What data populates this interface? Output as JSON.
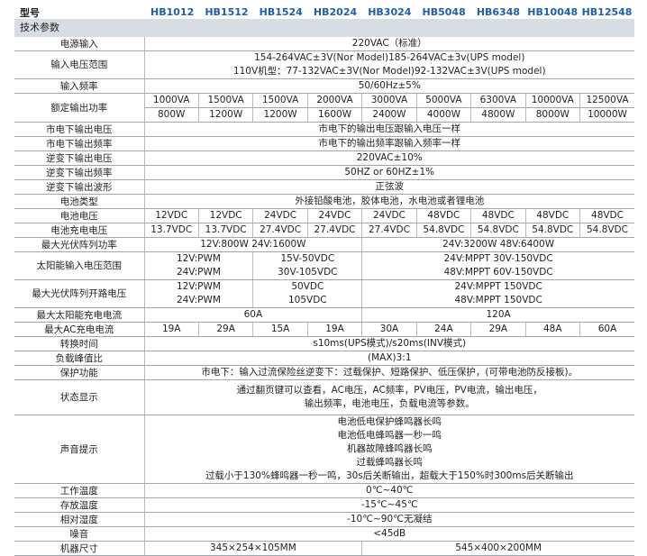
{
  "header": {
    "label": "型号",
    "models": [
      "HB1012",
      "HB1512",
      "HB1524",
      "HB2024",
      "HB3024",
      "HB5048",
      "HB6348",
      "HB10048",
      "HB12548"
    ]
  },
  "section": "技术参数",
  "colors": {
    "model_text": "#1f5fa8",
    "section_band": "#d7dde3"
  },
  "rows": [
    {
      "label": "电源输入",
      "h": 15,
      "cells": [
        {
          "span": 9,
          "lines": [
            "220VAC（标准）"
          ]
        }
      ]
    },
    {
      "label": "输入电压范围",
      "h": 31,
      "cells": [
        {
          "span": 9,
          "lines": [
            "154-264VAC±3V(Nor Model)185-264VAC±3v(UPS model)",
            "110V机型：77-132VAC±3V(Nor Model)92-132VAC±3V(UPS model)"
          ]
        }
      ]
    },
    {
      "label": "输入频率",
      "h": 15,
      "cells": [
        {
          "span": 9,
          "lines": [
            "50/60Hz±5%"
          ]
        }
      ]
    },
    {
      "label": "额定输出功率",
      "h": 15,
      "rowspan": 2,
      "cells": [
        {
          "span": 1,
          "lines": [
            "1000VA"
          ]
        },
        {
          "span": 1,
          "lines": [
            "1500VA"
          ]
        },
        {
          "span": 1,
          "lines": [
            "1500VA"
          ]
        },
        {
          "span": 1,
          "lines": [
            "2000VA"
          ]
        },
        {
          "span": 1,
          "lines": [
            "3000VA"
          ]
        },
        {
          "span": 1,
          "lines": [
            "5000VA"
          ]
        },
        {
          "span": 1,
          "lines": [
            "6300VA"
          ]
        },
        {
          "span": 1,
          "lines": [
            "10000VA"
          ]
        },
        {
          "span": 1,
          "lines": [
            "12500VA"
          ]
        }
      ]
    },
    {
      "label": "",
      "h": 15,
      "cont": true,
      "cells": [
        {
          "span": 1,
          "lines": [
            "800W"
          ]
        },
        {
          "span": 1,
          "lines": [
            "1200W"
          ]
        },
        {
          "span": 1,
          "lines": [
            "1200W"
          ]
        },
        {
          "span": 1,
          "lines": [
            "1600W"
          ]
        },
        {
          "span": 1,
          "lines": [
            "2400W"
          ]
        },
        {
          "span": 1,
          "lines": [
            "4000W"
          ]
        },
        {
          "span": 1,
          "lines": [
            "4800W"
          ]
        },
        {
          "span": 1,
          "lines": [
            "8000W"
          ]
        },
        {
          "span": 1,
          "lines": [
            "10000W"
          ]
        }
      ]
    },
    {
      "label": "市电下输出电压",
      "h": 15,
      "cells": [
        {
          "span": 9,
          "lines": [
            "市电下的输出电压跟输入电压一样"
          ]
        }
      ]
    },
    {
      "label": "市电下输出频率",
      "h": 15,
      "cells": [
        {
          "span": 9,
          "lines": [
            "市电下的输出频率跟输入频率一样"
          ]
        }
      ]
    },
    {
      "label": "逆变下输出电压",
      "h": 15,
      "cells": [
        {
          "span": 9,
          "lines": [
            "220VAC±10%"
          ]
        }
      ]
    },
    {
      "label": "逆变下输出频率",
      "h": 14,
      "cells": [
        {
          "span": 9,
          "lines": [
            "50HZ or 60HZ±1%"
          ]
        }
      ]
    },
    {
      "label": "逆变下输出波形",
      "h": 14,
      "cells": [
        {
          "span": 9,
          "lines": [
            "正弦波"
          ]
        }
      ]
    },
    {
      "label": "电池类型",
      "h": 15,
      "cells": [
        {
          "span": 9,
          "lines": [
            "外接铅酸电池，胶体电池，水电池或者锂电池"
          ]
        }
      ]
    },
    {
      "label": "电池电压",
      "h": 15,
      "cells": [
        {
          "span": 1,
          "lines": [
            "12VDC"
          ]
        },
        {
          "span": 1,
          "lines": [
            "12VDC"
          ]
        },
        {
          "span": 1,
          "lines": [
            "24VDC"
          ]
        },
        {
          "span": 1,
          "lines": [
            "24VDC"
          ]
        },
        {
          "span": 1,
          "lines": [
            "24VDC"
          ]
        },
        {
          "span": 1,
          "lines": [
            "48VDC"
          ]
        },
        {
          "span": 1,
          "lines": [
            "48VDC"
          ]
        },
        {
          "span": 1,
          "lines": [
            "48VDC"
          ]
        },
        {
          "span": 1,
          "lines": [
            "48VDC"
          ]
        }
      ]
    },
    {
      "label": "电池充电电压",
      "h": 15,
      "cells": [
        {
          "span": 1,
          "lines": [
            "13.7VDC"
          ]
        },
        {
          "span": 1,
          "lines": [
            "13.7VDC"
          ]
        },
        {
          "span": 1,
          "lines": [
            "27.4VDC"
          ]
        },
        {
          "span": 1,
          "lines": [
            "27.4VDC"
          ]
        },
        {
          "span": 1,
          "lines": [
            "27.4VDC"
          ]
        },
        {
          "span": 1,
          "lines": [
            "54.8VDC"
          ]
        },
        {
          "span": 1,
          "lines": [
            "54.8VDC"
          ]
        },
        {
          "span": 1,
          "lines": [
            "54.8VDC"
          ]
        },
        {
          "span": 1,
          "lines": [
            "54.8VDC"
          ]
        }
      ]
    },
    {
      "label": "最大光伏阵列功率",
      "h": 14,
      "cells": [
        {
          "span": 4,
          "lines": [
            "12V:800W 24V:1600W"
          ]
        },
        {
          "span": 5,
          "lines": [
            "24V:3200W   48V:6400W"
          ]
        }
      ]
    },
    {
      "label": "太阳能输入电压范围",
      "h": 29,
      "cells": [
        {
          "span": 2,
          "lines": [
            "12V:PWM",
            "24V:PWM"
          ]
        },
        {
          "span": 2,
          "lines": [
            "15V-50VDC",
            "30V-105VDC"
          ]
        },
        {
          "span": 5,
          "lines": [
            "24V:MPPT 30V-150VDC",
            "48V:MPPT 60V-150VDC"
          ]
        }
      ]
    },
    {
      "label": "最大光伏阵列开路电压",
      "h": 29,
      "cells": [
        {
          "span": 2,
          "lines": [
            "12V:PWM",
            "24V:PWM"
          ]
        },
        {
          "span": 2,
          "lines": [
            "50VDC",
            "105VDC"
          ]
        },
        {
          "span": 5,
          "lines": [
            "24V:MPPT 150VDC",
            "48V:MPPT 150VDC"
          ]
        }
      ]
    },
    {
      "label": "最大太阳能充电电流",
      "h": 16,
      "cells": [
        {
          "span": 4,
          "lines": [
            "60A"
          ]
        },
        {
          "span": 5,
          "lines": [
            "120A"
          ]
        }
      ]
    },
    {
      "label": "最大AC充电电流",
      "h": 16,
      "cells": [
        {
          "span": 1,
          "lines": [
            "19A"
          ]
        },
        {
          "span": 1,
          "lines": [
            "29A"
          ]
        },
        {
          "span": 1,
          "lines": [
            "15A"
          ]
        },
        {
          "span": 1,
          "lines": [
            "19A"
          ]
        },
        {
          "span": 1,
          "lines": [
            "30A"
          ]
        },
        {
          "span": 1,
          "lines": [
            "24A"
          ]
        },
        {
          "span": 1,
          "lines": [
            "29A"
          ]
        },
        {
          "span": 1,
          "lines": [
            "48A"
          ]
        },
        {
          "span": 1,
          "lines": [
            "60A"
          ]
        }
      ]
    },
    {
      "label": "转换时间",
      "h": 16,
      "cells": [
        {
          "span": 9,
          "lines": [
            "s10ms(UPS模式)/s20ms(INV模式)"
          ]
        }
      ]
    },
    {
      "label": "负载峰值比",
      "h": 15,
      "cells": [
        {
          "span": 9,
          "lines": [
            "(MAX)3:1"
          ]
        }
      ]
    },
    {
      "label": "保护功能",
      "h": 15,
      "cells": [
        {
          "span": 9,
          "lines": [
            "市电下：输入过流保险丝逆变下：过载保护、短路保护、低压保护，(可带电池防反接板)。"
          ]
        }
      ]
    },
    {
      "label": "状态显示",
      "h": 39,
      "cells": [
        {
          "span": 9,
          "lines": [
            "通过翻页键可以查看，AC电压，AC频率，PV电压，PV电流，输出电压，",
            "输出频率，电池电压，负载电流等参数。"
          ]
        }
      ]
    },
    {
      "label": "声音提示",
      "h": 75,
      "cells": [
        {
          "span": 9,
          "lines": [
            "电池低电保护蜂鸣器长鸣",
            "电池低电蜂鸣器一秒一鸣",
            "机器故障蜂鸣器长鸣",
            "过载蜂鸣器长鸣",
            "过载小于130%蜂鸣器一秒一鸣，30s后关断输出，超载大于150%时300ms后关断输出"
          ]
        }
      ]
    },
    {
      "label": "工作温度",
      "h": 15,
      "cells": [
        {
          "span": 9,
          "lines": [
            "0℃~40℃"
          ]
        }
      ]
    },
    {
      "label": "存放温度",
      "h": 15,
      "cells": [
        {
          "span": 9,
          "lines": [
            "-15℃~45℃"
          ]
        }
      ]
    },
    {
      "label": "相对湿度",
      "h": 15,
      "cells": [
        {
          "span": 9,
          "lines": [
            "-10℃~90℃无凝结"
          ]
        }
      ]
    },
    {
      "label": "噪音",
      "h": 15,
      "cells": [
        {
          "span": 9,
          "lines": [
            "<45dB"
          ]
        }
      ]
    },
    {
      "label": "机器尺寸",
      "h": 15,
      "cells": [
        {
          "span": 4,
          "lines": [
            "345×254×105MM"
          ]
        },
        {
          "span": 5,
          "lines": [
            "545×400×200MM"
          ]
        }
      ]
    }
  ]
}
